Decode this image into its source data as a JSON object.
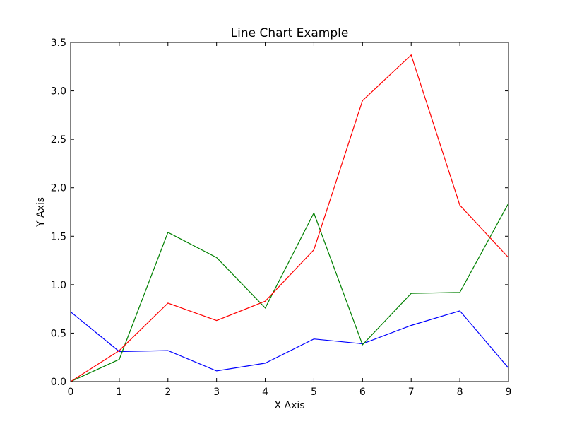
{
  "chart_data": {
    "type": "line",
    "title": "Line Chart Example",
    "xlabel": "X Axis",
    "ylabel": "Y Axis",
    "xlim": [
      0,
      9
    ],
    "ylim": [
      0,
      3.5
    ],
    "x": [
      0,
      1,
      2,
      3,
      4,
      5,
      6,
      7,
      8,
      9
    ],
    "xticks": [
      "0",
      "1",
      "2",
      "3",
      "4",
      "5",
      "6",
      "7",
      "8",
      "9"
    ],
    "yticks": [
      "0.0",
      "0.5",
      "1.0",
      "1.5",
      "2.0",
      "2.5",
      "3.0",
      "3.5"
    ],
    "grid": false,
    "series": [
      {
        "color": "#0000ff",
        "values": [
          0.72,
          0.31,
          0.32,
          0.11,
          0.19,
          0.44,
          0.39,
          0.58,
          0.73,
          0.14
        ]
      },
      {
        "color": "#008000",
        "values": [
          0.0,
          0.23,
          1.54,
          1.28,
          0.76,
          1.74,
          0.38,
          0.91,
          0.92,
          1.84
        ]
      },
      {
        "color": "#ff0000",
        "values": [
          0.0,
          0.32,
          0.81,
          0.63,
          0.83,
          1.36,
          2.9,
          3.37,
          1.82,
          1.28
        ]
      }
    ]
  }
}
